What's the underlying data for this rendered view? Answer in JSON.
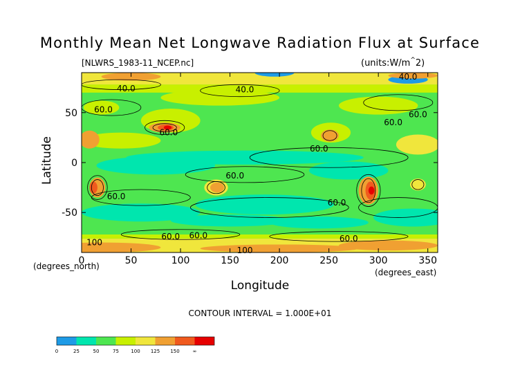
{
  "title": "Monthly Mean Net Longwave Radiation Flux at Surface",
  "file_label": "[NLWRS_1983-11_NCEP.nc]",
  "units_label": "(units:W/m^2)",
  "contour_interval": "CONTOUR INTERVAL = 1.000E+01",
  "colors": {
    "c0": "#1e9be6",
    "c25": "#00e6ae",
    "c50": "#4ee650",
    "c75": "#c8f000",
    "c100": "#f0e63c",
    "c125": "#f0a032",
    "c150": "#f05a1e",
    "c175": "#e60000"
  },
  "chart_data": {
    "type": "heatmap",
    "title": "Monthly Mean Net Longwave Radiation Flux at Surface",
    "xlabel": "Longitude",
    "ylabel": "Latitude",
    "x_units_label": "(degrees_east)",
    "y_units_label": "(degrees_north)",
    "xlim": [
      0,
      360
    ],
    "ylim": [
      -90,
      90
    ],
    "x_ticks": [
      0,
      50,
      100,
      150,
      200,
      250,
      300,
      350
    ],
    "y_ticks": [
      -50,
      0,
      50
    ],
    "contour_labels": [
      {
        "text": "40.0",
        "lon": 45,
        "lat": 74
      },
      {
        "text": "40.0",
        "lon": 165,
        "lat": 73
      },
      {
        "text": "40.0",
        "lon": 330,
        "lat": 86
      },
      {
        "text": "60.0",
        "lon": 22,
        "lat": 53
      },
      {
        "text": "60.0",
        "lon": 88,
        "lat": 30
      },
      {
        "text": "60.0",
        "lon": 340,
        "lat": 48
      },
      {
        "text": "60.0",
        "lon": 315,
        "lat": 40
      },
      {
        "text": "60.0",
        "lon": 240,
        "lat": 14
      },
      {
        "text": "60.0",
        "lon": 155,
        "lat": -13
      },
      {
        "text": "60.0",
        "lon": 35,
        "lat": -34
      },
      {
        "text": "60.0",
        "lon": 258,
        "lat": -40
      },
      {
        "text": "60.0",
        "lon": 118,
        "lat": -73
      },
      {
        "text": "60.0",
        "lon": 270,
        "lat": -76
      },
      {
        "text": "60.0",
        "lon": 90,
        "lat": -74
      },
      {
        "text": "100",
        "lon": 13,
        "lat": -80
      },
      {
        "text": "100",
        "lon": 165,
        "lat": -88
      }
    ],
    "colorbar": {
      "levels": [
        "0",
        "25",
        "50",
        "75",
        "100",
        "125",
        "150",
        "∞"
      ]
    }
  }
}
